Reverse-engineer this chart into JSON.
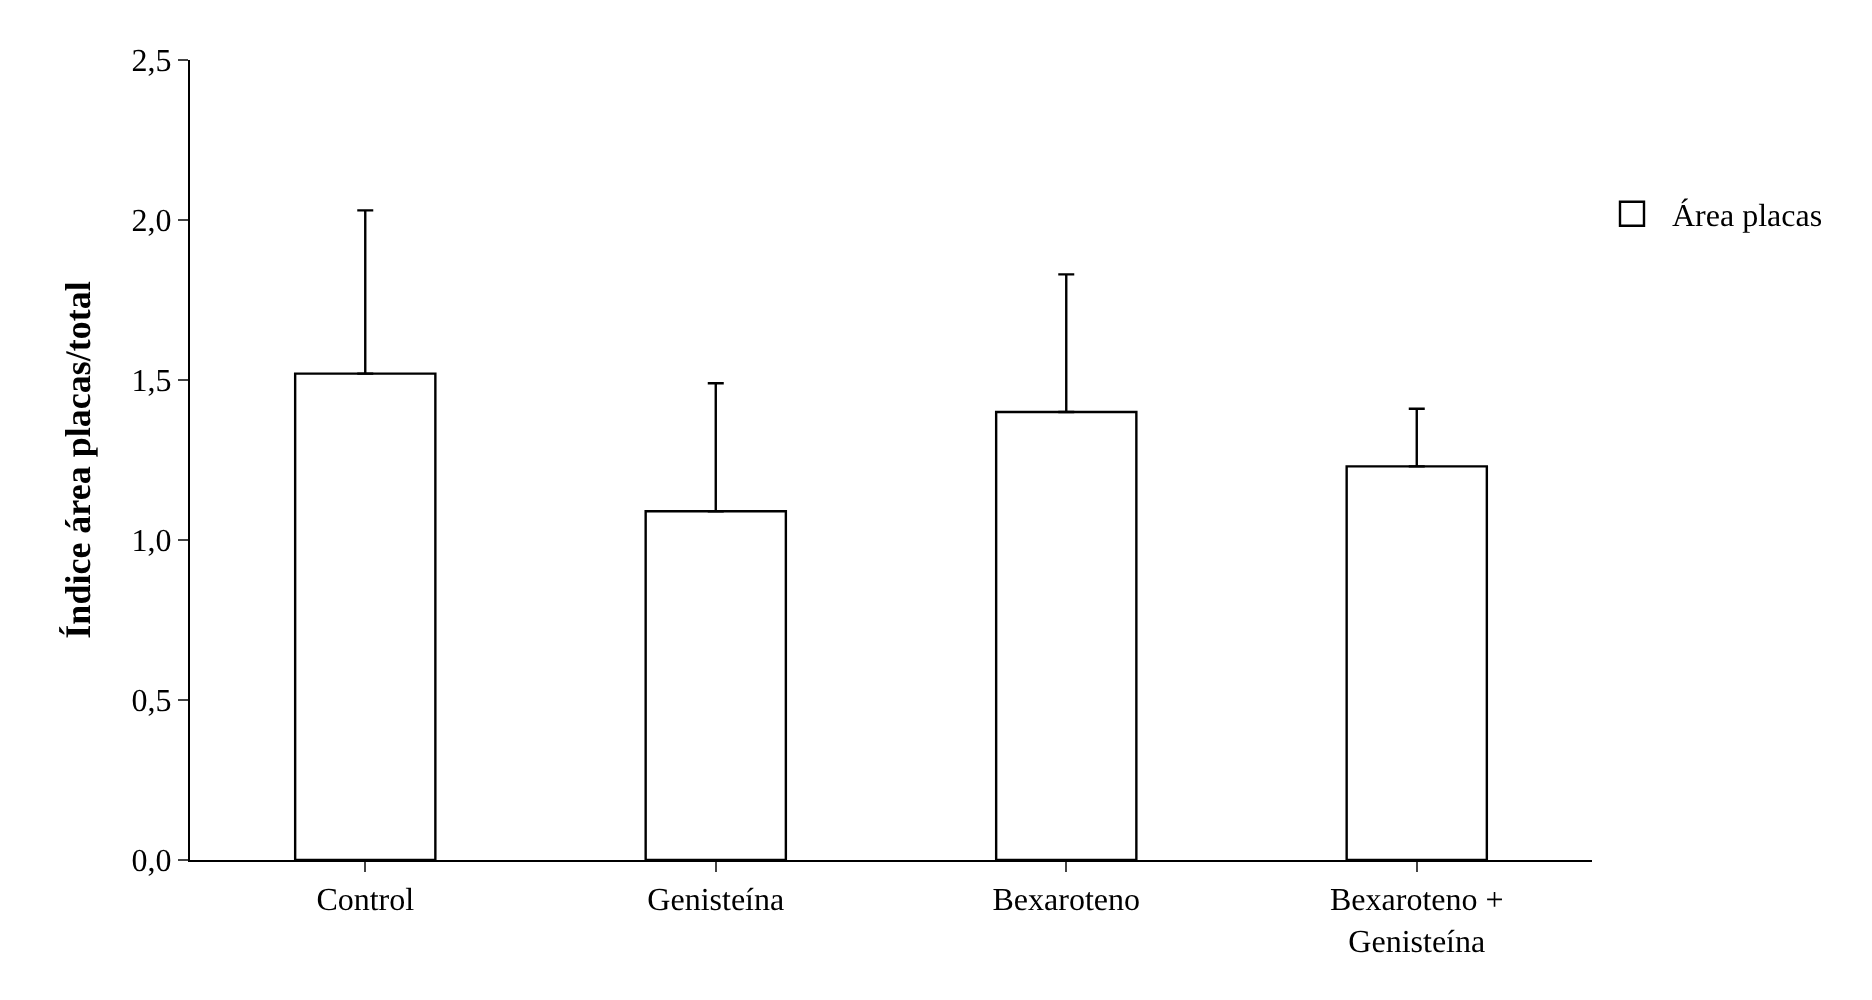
{
  "chart_data": {
    "type": "bar",
    "categories": [
      "Control",
      "Genisteína",
      "Bexaroteno",
      "Bexaroteno +\nGenisteína"
    ],
    "series": [
      {
        "name": "Área placas",
        "color": "#ffffff",
        "values": [
          1.52,
          1.09,
          1.4,
          1.23
        ],
        "errors": [
          [
            1.52,
            2.03
          ],
          [
            1.09,
            1.49
          ],
          [
            1.4,
            1.83
          ],
          [
            1.23,
            1.41
          ]
        ]
      }
    ],
    "ylabel": "Índice área placas/total",
    "ylim": [
      0,
      2.5
    ],
    "yticks": [
      {
        "value": 0,
        "label": "0,0"
      },
      {
        "value": 0.5,
        "label": "0,5"
      },
      {
        "value": 1,
        "label": "1,0"
      },
      {
        "value": 1.5,
        "label": "1,5"
      },
      {
        "value": 2,
        "label": "2,0"
      },
      {
        "value": 2.5,
        "label": "2,5"
      }
    ],
    "legend": "top right"
  }
}
